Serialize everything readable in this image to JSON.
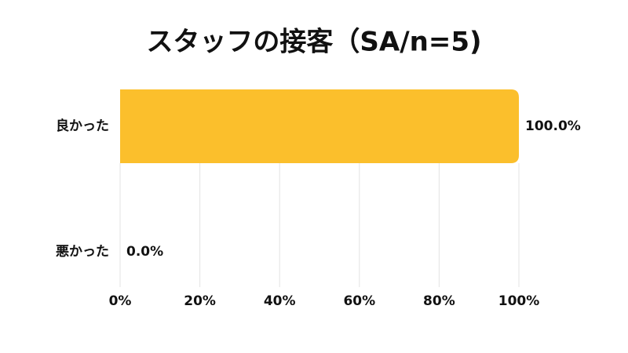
{
  "chart_data": {
    "type": "bar",
    "orientation": "horizontal",
    "title": "スタッフの接客（SA/n=5)",
    "categories": [
      "良かった",
      "悪かった"
    ],
    "values": [
      100,
      0
    ],
    "value_labels": [
      "100.0%",
      "0.0%"
    ],
    "color": "#fbbf2c",
    "xlim": [
      0,
      100
    ],
    "xticks": [
      {
        "value": 0,
        "label": "0%"
      },
      {
        "value": 20,
        "label": "20%"
      },
      {
        "value": 40,
        "label": "40%"
      },
      {
        "value": 60,
        "label": "60%"
      },
      {
        "value": 80,
        "label": "80%"
      },
      {
        "value": 100,
        "label": "100%"
      }
    ],
    "grid": true
  }
}
